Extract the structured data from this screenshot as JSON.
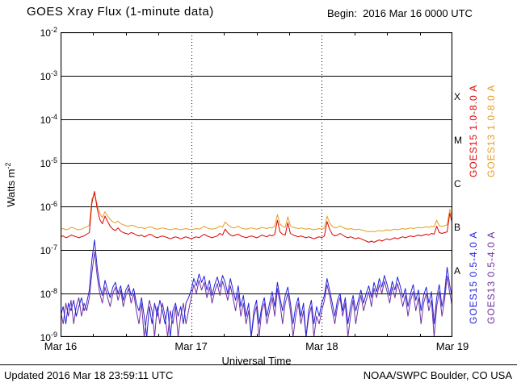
{
  "header": {
    "begin": "Begin:  2016 Mar 16 0000 UTC"
  },
  "footer": {
    "updated": "Updated 2016 Mar 18 23:59:11 UTC",
    "source": "NOAA/SWPC Boulder, CO USA"
  },
  "chart_data": {
    "type": "line",
    "title": "GOES Xray Flux (1-minute data)",
    "xlabel": "Universal Time",
    "ylabel": "Watts m^-2",
    "ylabel_base": "Watts m",
    "ylabel_exp": "-2",
    "x_scale": "days since 2016 Mar 16 0000 UTC",
    "y_scale": "log10",
    "xlim_days": [
      0,
      3
    ],
    "ylim": [
      1e-09,
      0.01
    ],
    "grid": {
      "horizontal": "solid line per decade",
      "vertical": "dotted line per day"
    },
    "x_ticks": [
      {
        "label": "Mar 16",
        "t": 0
      },
      {
        "label": "Mar 17",
        "t": 1
      },
      {
        "label": "Mar 18",
        "t": 2
      },
      {
        "label": "Mar 19",
        "t": 3
      }
    ],
    "y_tick_base": "10",
    "y_tick_exponents": [
      "-2",
      "-3",
      "-4",
      "-5",
      "-6",
      "-7",
      "-8",
      "-9"
    ],
    "flare_classes": [
      {
        "label": "X",
        "log_mid": -3.5
      },
      {
        "label": "M",
        "log_mid": -4.5
      },
      {
        "label": "C",
        "log_mid": -5.5
      },
      {
        "label": "B",
        "log_mid": -6.5
      },
      {
        "label": "A",
        "log_mid": -7.5
      }
    ],
    "x_step_days": 0.02,
    "series": [
      {
        "name": "GOES15 1.0-8.0 A",
        "satellite": "GOES15",
        "wavelength": "1.0-8.0 A",
        "color": "#dd0000",
        "values": [
          2e-07,
          2.1e-07,
          1.9e-07,
          2e-07,
          2.2e-07,
          2.1e-07,
          2e-07,
          1.9e-07,
          2e-07,
          2.1e-07,
          2.3e-07,
          2.5e-07,
          1.2e-06,
          2.2e-06,
          9e-07,
          5e-07,
          4e-07,
          6e-07,
          4.5e-07,
          3.5e-07,
          3e-07,
          2.8e-07,
          3.2e-07,
          2.7e-07,
          2.5e-07,
          2.4e-07,
          2.3e-07,
          2.5e-07,
          2.4e-07,
          2.2e-07,
          2.1e-07,
          2.2e-07,
          2e-07,
          2.1e-07,
          2.3e-07,
          2.2e-07,
          2e-07,
          1.9e-07,
          2e-07,
          2.1e-07,
          2e-07,
          1.9e-07,
          1.8e-07,
          1.9e-07,
          2e-07,
          1.9e-07,
          1.8e-07,
          1.9e-07,
          2e-07,
          1.9e-07,
          1.8e-07,
          1.9e-07,
          2e-07,
          1.9e-07,
          2.1e-07,
          2.3e-07,
          2.1e-07,
          2e-07,
          1.9e-07,
          2e-07,
          2.1e-07,
          2.4e-07,
          2.2e-07,
          3e-07,
          2.5e-07,
          2.2e-07,
          2.1e-07,
          2.2e-07,
          2.3e-07,
          2.1e-07,
          2e-07,
          1.9e-07,
          2e-07,
          2.1e-07,
          2e-07,
          1.9e-07,
          2e-07,
          2.2e-07,
          2.1e-07,
          2e-07,
          2.2e-07,
          2.1e-07,
          2.3e-07,
          4.8e-07,
          2.6e-07,
          2.3e-07,
          2.2e-07,
          4.2e-07,
          2.4e-07,
          2.2e-07,
          2.1e-07,
          2e-07,
          2.1e-07,
          2e-07,
          1.9e-07,
          2e-07,
          1.9e-07,
          1.8e-07,
          1.9e-07,
          2e-07,
          1.9e-07,
          2.1e-07,
          4.5e-07,
          3e-07,
          2.3e-07,
          2.1e-07,
          2.2e-07,
          2.4e-07,
          2.2e-07,
          2e-07,
          1.9e-07,
          2e-07,
          1.9e-07,
          1.8e-07,
          1.9e-07,
          1.8e-07,
          1.7e-07,
          1.6e-07,
          1.5e-07,
          1.6e-07,
          1.5e-07,
          1.6e-07,
          1.7e-07,
          1.6e-07,
          1.7e-07,
          1.8e-07,
          1.7e-07,
          1.8e-07,
          1.9e-07,
          1.8e-07,
          1.9e-07,
          2e-07,
          1.9e-07,
          2e-07,
          2.1e-07,
          2e-07,
          2.1e-07,
          2.2e-07,
          2.1e-07,
          2.2e-07,
          2.3e-07,
          2.2e-07,
          2.4e-07,
          2.3e-07,
          3.5e-07,
          2.5e-07,
          2.4e-07,
          2.5e-07,
          2.6e-07,
          7e-07,
          4e-07
        ]
      },
      {
        "name": "GOES13 1.0-8.0 A",
        "satellite": "GOES13",
        "wavelength": "1.0-8.0 A",
        "color": "#e69b1e",
        "values": [
          3e-07,
          3.1e-07,
          2.9e-07,
          3e-07,
          3.3e-07,
          3.2e-07,
          3e-07,
          2.9e-07,
          3e-07,
          3.2e-07,
          3.4e-07,
          3.7e-07,
          1.5e-06,
          1.9e-06,
          1.1e-06,
          7e-07,
          5.5e-07,
          7.5e-07,
          6e-07,
          5e-07,
          4.4e-07,
          4.2e-07,
          4.6e-07,
          4e-07,
          3.8e-07,
          3.6e-07,
          3.5e-07,
          3.7e-07,
          3.6e-07,
          3.4e-07,
          3.2e-07,
          3.3e-07,
          3.1e-07,
          3.2e-07,
          3.4e-07,
          3.3e-07,
          3.1e-07,
          3e-07,
          3.1e-07,
          3.2e-07,
          3.1e-07,
          3e-07,
          2.9e-07,
          3e-07,
          3.1e-07,
          3e-07,
          2.9e-07,
          3e-07,
          3.1e-07,
          3e-07,
          2.9e-07,
          3e-07,
          3.1e-07,
          3e-07,
          3.2e-07,
          3.5e-07,
          3.2e-07,
          3.1e-07,
          3e-07,
          3.1e-07,
          3.2e-07,
          3.6e-07,
          3.3e-07,
          4.4e-07,
          3.8e-07,
          3.4e-07,
          3.2e-07,
          3.3e-07,
          3.5e-07,
          3.2e-07,
          3.1e-07,
          3e-07,
          3.1e-07,
          3.2e-07,
          3.1e-07,
          3e-07,
          3.1e-07,
          3.3e-07,
          3.2e-07,
          3.1e-07,
          3.3e-07,
          3.2e-07,
          3.5e-07,
          6.5e-07,
          3.9e-07,
          3.5e-07,
          3.3e-07,
          5.8e-07,
          3.6e-07,
          3.3e-07,
          3.2e-07,
          3.1e-07,
          3.2e-07,
          3.1e-07,
          3e-07,
          3.1e-07,
          3e-07,
          2.9e-07,
          3e-07,
          3.1e-07,
          3e-07,
          3.2e-07,
          6e-07,
          4.2e-07,
          3.5e-07,
          3.2e-07,
          3.3e-07,
          3.6e-07,
          3.3e-07,
          3.1e-07,
          3e-07,
          3.1e-07,
          3e-07,
          2.9e-07,
          3e-07,
          2.9e-07,
          2.8e-07,
          2.7e-07,
          2.6e-07,
          2.7e-07,
          2.6e-07,
          2.7e-07,
          2.8e-07,
          2.7e-07,
          2.8e-07,
          2.9e-07,
          2.8e-07,
          2.9e-07,
          3e-07,
          2.9e-07,
          3e-07,
          3.1e-07,
          3e-07,
          3.1e-07,
          3.2e-07,
          3.1e-07,
          3.2e-07,
          3.3e-07,
          3.2e-07,
          3.3e-07,
          3.4e-07,
          3.3e-07,
          3.5e-07,
          3.4e-07,
          4.8e-07,
          3.6e-07,
          3.5e-07,
          3.6e-07,
          3.8e-07,
          8.5e-07,
          5.5e-07
        ]
      },
      {
        "name": "GOES15 0.5-4.0 A",
        "satellite": "GOES15",
        "wavelength": "0.5-4.0 A",
        "color": "#2222dd",
        "values": [
          3e-09,
          5e-09,
          2e-09,
          6e-09,
          4e-09,
          7e-09,
          3e-09,
          5e-09,
          8e-09,
          4e-09,
          6e-09,
          1.2e-08,
          6e-08,
          1.7e-07,
          4e-08,
          1.5e-08,
          9e-09,
          2e-08,
          1.2e-08,
          8e-09,
          1.4e-08,
          1.8e-08,
          1e-08,
          1.5e-08,
          7e-09,
          1.2e-08,
          1.6e-08,
          9e-09,
          1.3e-08,
          6e-09,
          4e-09,
          8e-09,
          3e-09,
          1e-09,
          5e-09,
          2e-09,
          6e-09,
          3e-09,
          7e-09,
          4e-09,
          2e-09,
          5e-09,
          1e-09,
          4e-09,
          6e-09,
          3e-09,
          5e-09,
          2e-09,
          6e-09,
          8e-09,
          1.2e-08,
          2.2e-08,
          1.5e-08,
          2.8e-08,
          1.8e-08,
          2.5e-08,
          1.2e-08,
          2e-08,
          9e-09,
          1.6e-08,
          2.4e-08,
          1.4e-08,
          2.6e-08,
          1.8e-08,
          1e-08,
          2.2e-08,
          1.2e-08,
          7e-09,
          1.5e-08,
          5e-09,
          9e-09,
          3e-09,
          6e-09,
          1e-09,
          4e-09,
          7e-09,
          2e-09,
          5e-09,
          8e-09,
          3e-09,
          6e-09,
          1.1e-08,
          5e-09,
          1.8e-08,
          8e-09,
          4e-09,
          9e-09,
          1.4e-08,
          6e-09,
          2e-09,
          5e-09,
          8e-09,
          3e-09,
          6e-09,
          1e-09,
          4e-09,
          7e-09,
          2e-09,
          5e-09,
          3e-09,
          6e-09,
          9e-09,
          2.2e-08,
          1.2e-08,
          6e-09,
          3e-09,
          7e-09,
          1e-08,
          4e-09,
          8e-09,
          2e-09,
          5e-09,
          9e-09,
          4e-09,
          7e-09,
          1.2e-08,
          6e-09,
          1e-08,
          1.5e-08,
          8e-09,
          1.8e-08,
          1.1e-08,
          2.2e-08,
          1.4e-08,
          2.6e-08,
          1.6e-08,
          9e-09,
          1.9e-08,
          1.2e-08,
          2.4e-08,
          1.5e-08,
          8e-09,
          1.3e-08,
          5e-09,
          1e-08,
          1.6e-08,
          7e-09,
          1.2e-08,
          4e-09,
          9e-09,
          1.4e-08,
          6e-09,
          1.1e-08,
          2e-09,
          8e-09,
          1.6e-08,
          5e-09,
          1e-08,
          4e-08,
          1.5e-08,
          8e-09
        ]
      },
      {
        "name": "GOES13 0.5-4.0 A",
        "satellite": "GOES13",
        "wavelength": "0.5-4.0 A",
        "color": "#7030a0",
        "values": [
          4e-09,
          2e-09,
          6e-09,
          3e-09,
          7e-09,
          2e-09,
          5e-09,
          8e-09,
          3e-09,
          6e-09,
          4e-09,
          8e-09,
          3e-08,
          9e-08,
          2.5e-08,
          1e-08,
          6e-09,
          1.4e-08,
          8e-09,
          5e-09,
          1e-08,
          1.4e-08,
          7e-09,
          1.2e-08,
          5e-09,
          9e-09,
          1.3e-08,
          6e-09,
          1e-08,
          4e-09,
          2e-09,
          6e-09,
          1e-09,
          3e-09,
          7e-09,
          4e-09,
          1e-09,
          5e-09,
          2e-09,
          6e-09,
          3e-09,
          1e-09,
          4e-09,
          2e-09,
          5e-09,
          1e-09,
          3e-09,
          6e-09,
          2e-09,
          4e-09,
          8e-09,
          1.6e-08,
          1e-08,
          2e-08,
          1.2e-08,
          1.8e-08,
          8e-09,
          1.4e-08,
          6e-09,
          1.1e-08,
          1.7e-08,
          9e-09,
          1.9e-08,
          1.2e-08,
          7e-09,
          1.5e-08,
          8e-09,
          4e-09,
          1e-08,
          3e-09,
          6e-09,
          2e-09,
          4e-09,
          1e-09,
          3e-09,
          5e-09,
          1e-09,
          4e-09,
          6e-09,
          2e-09,
          4e-09,
          8e-09,
          3e-09,
          1.3e-08,
          6e-09,
          2e-09,
          6e-09,
          1e-08,
          4e-09,
          1e-09,
          3e-09,
          6e-09,
          2e-09,
          4e-09,
          1e-09,
          3e-09,
          5e-09,
          1e-09,
          3e-09,
          2e-09,
          4e-09,
          7e-09,
          1.6e-08,
          9e-09,
          4e-09,
          2e-09,
          5e-09,
          8e-09,
          3e-09,
          6e-09,
          1e-09,
          3e-09,
          7e-09,
          2e-09,
          5e-09,
          9e-09,
          4e-09,
          7e-09,
          1.1e-08,
          5e-09,
          1.3e-08,
          8e-09,
          1.6e-08,
          1e-08,
          1.9e-08,
          1.1e-08,
          6e-09,
          1.4e-08,
          8e-09,
          1.7e-08,
          1e-08,
          5e-09,
          9e-09,
          3e-09,
          7e-09,
          1.1e-08,
          4e-09,
          8e-09,
          2e-09,
          6e-09,
          1e-08,
          4e-09,
          7e-09,
          1e-09,
          5e-09,
          1.1e-08,
          3e-09,
          7e-09,
          2.5e-08,
          1e-08,
          5e-09
        ]
      }
    ]
  }
}
